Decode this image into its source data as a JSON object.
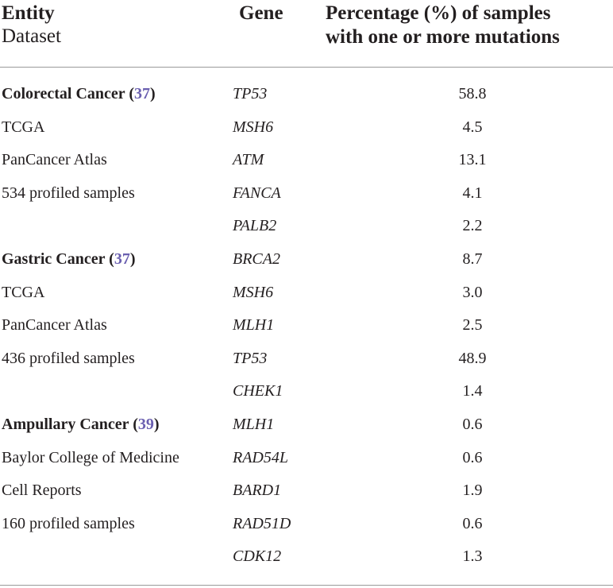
{
  "header": {
    "entity": "Entity",
    "dataset": "Dataset",
    "gene": "Gene",
    "pct_line1": "Percentage (%) of samples",
    "pct_line2": "with one or more mutations"
  },
  "rows": [
    {
      "entity": "Colorectal Cancer",
      "ref": "37",
      "gene": "TP53",
      "pct": "58.8"
    },
    {
      "entity": "TCGA",
      "gene": "MSH6",
      "pct": "4.5"
    },
    {
      "entity": "PanCancer Atlas",
      "gene": "ATM",
      "pct": "13.1"
    },
    {
      "entity": "534 profiled samples",
      "gene": "FANCA",
      "pct": "4.1"
    },
    {
      "entity": "",
      "gene": "PALB2",
      "pct": "2.2"
    },
    {
      "entity": "Gastric Cancer",
      "ref": "37",
      "gene": "BRCA2",
      "pct": "8.7"
    },
    {
      "entity": "TCGA",
      "gene": "MSH6",
      "pct": "3.0"
    },
    {
      "entity": "PanCancer Atlas",
      "gene": "MLH1",
      "pct": "2.5"
    },
    {
      "entity": "436 profiled samples",
      "gene": "TP53",
      "pct": "48.9"
    },
    {
      "entity": "",
      "gene": "CHEK1",
      "pct": "1.4"
    },
    {
      "entity": "Ampullary Cancer",
      "ref": "39",
      "gene": "MLH1",
      "pct": "0.6"
    },
    {
      "entity": "Baylor College of Medicine",
      "gene": "RAD54L",
      "pct": "0.6"
    },
    {
      "entity": "Cell Reports",
      "gene": "BARD1",
      "pct": "1.9"
    },
    {
      "entity": "160 profiled samples",
      "gene": "RAD51D",
      "pct": "0.6"
    },
    {
      "entity": "",
      "gene": "CDK12",
      "pct": "1.3"
    }
  ]
}
